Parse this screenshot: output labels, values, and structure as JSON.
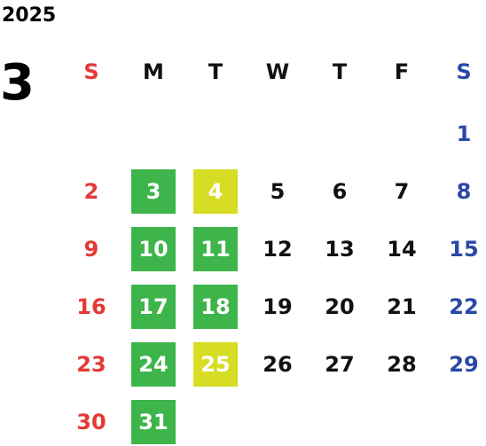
{
  "calendar": {
    "year": "2025",
    "month": "3",
    "weekdays": [
      "S",
      "M",
      "T",
      "W",
      "T",
      "F",
      "S"
    ],
    "colors": {
      "sunday": "#e53935",
      "saturday": "#2a48a8",
      "weekday": "#111111",
      "green_highlight": "#3db54a",
      "yellow_highlight": "#d6dd22",
      "highlight_text": "#ffffff"
    },
    "days": [
      {
        "label": "1",
        "weekday": 6,
        "highlight": null
      },
      {
        "label": "2",
        "weekday": 0,
        "highlight": null
      },
      {
        "label": "3",
        "weekday": 1,
        "highlight": "green"
      },
      {
        "label": "4",
        "weekday": 2,
        "highlight": "yellow"
      },
      {
        "label": "5",
        "weekday": 3,
        "highlight": null
      },
      {
        "label": "6",
        "weekday": 4,
        "highlight": null
      },
      {
        "label": "7",
        "weekday": 5,
        "highlight": null
      },
      {
        "label": "8",
        "weekday": 6,
        "highlight": null
      },
      {
        "label": "9",
        "weekday": 0,
        "highlight": null
      },
      {
        "label": "10",
        "weekday": 1,
        "highlight": "green"
      },
      {
        "label": "11",
        "weekday": 2,
        "highlight": "green"
      },
      {
        "label": "12",
        "weekday": 3,
        "highlight": null
      },
      {
        "label": "13",
        "weekday": 4,
        "highlight": null
      },
      {
        "label": "14",
        "weekday": 5,
        "highlight": null
      },
      {
        "label": "15",
        "weekday": 6,
        "highlight": null
      },
      {
        "label": "16",
        "weekday": 0,
        "highlight": null
      },
      {
        "label": "17",
        "weekday": 1,
        "highlight": "green"
      },
      {
        "label": "18",
        "weekday": 2,
        "highlight": "green"
      },
      {
        "label": "19",
        "weekday": 3,
        "highlight": null
      },
      {
        "label": "20",
        "weekday": 4,
        "highlight": null
      },
      {
        "label": "21",
        "weekday": 5,
        "highlight": null
      },
      {
        "label": "22",
        "weekday": 6,
        "highlight": null
      },
      {
        "label": "23",
        "weekday": 0,
        "highlight": null
      },
      {
        "label": "24",
        "weekday": 1,
        "highlight": "green"
      },
      {
        "label": "25",
        "weekday": 2,
        "highlight": "yellow"
      },
      {
        "label": "26",
        "weekday": 3,
        "highlight": null
      },
      {
        "label": "27",
        "weekday": 4,
        "highlight": null
      },
      {
        "label": "28",
        "weekday": 5,
        "highlight": null
      },
      {
        "label": "29",
        "weekday": 6,
        "highlight": null
      },
      {
        "label": "30",
        "weekday": 0,
        "highlight": null
      },
      {
        "label": "31",
        "weekday": 1,
        "highlight": "green"
      }
    ]
  }
}
